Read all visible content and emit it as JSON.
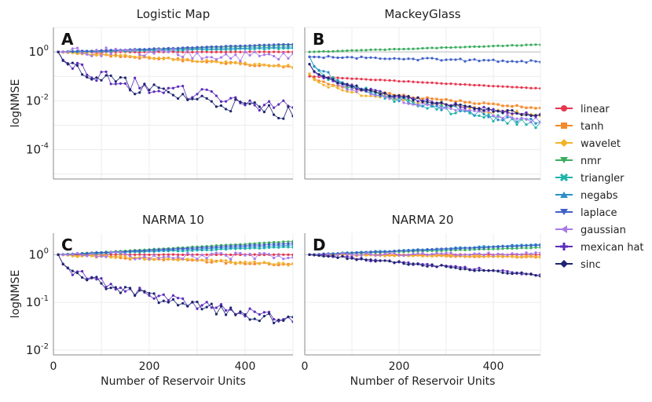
{
  "chart_data": [
    {
      "type": "line",
      "panel_letter": "A",
      "title": "Logistic Map",
      "xlabel": "",
      "ylabel": "logNMSE",
      "yscale": "log",
      "xlim": [
        0,
        500
      ],
      "ylim_log10": [
        -5.2,
        1.0
      ],
      "yticks": [
        {
          "exp": 0,
          "label": "10^0"
        },
        {
          "exp": -2,
          "label": "10^-2"
        },
        {
          "exp": -4,
          "label": "10^-4"
        }
      ],
      "xticks": [],
      "grid": true,
      "series": [
        {
          "name": "linear",
          "start": 0.0,
          "end": 0.0,
          "noise": 0.01
        },
        {
          "name": "tanh",
          "start": 0.0,
          "end": -0.62,
          "noise": 0.05
        },
        {
          "name": "wavelet",
          "start": 0.0,
          "end": -0.6,
          "noise": 0.05
        },
        {
          "name": "nmr",
          "start": 0.0,
          "end": 0.28,
          "noise": 0.01
        },
        {
          "name": "triangler",
          "start": 0.0,
          "end": 0.15,
          "noise": 0.02
        },
        {
          "name": "negabs",
          "start": 0.0,
          "end": 0.2,
          "noise": 0.01
        },
        {
          "name": "laplace",
          "start": 0.0,
          "end": 0.32,
          "noise": 0.01
        },
        {
          "name": "gaussian",
          "start": 0.0,
          "end": -0.2,
          "noise": 0.22
        },
        {
          "name": "mexican hat",
          "start": 0.0,
          "end": -2.3,
          "noise": 0.3
        },
        {
          "name": "sinc",
          "start": 0.0,
          "end": -2.5,
          "noise": 0.3
        }
      ]
    },
    {
      "type": "line",
      "panel_letter": "B",
      "title": "MackeyGlass",
      "xlabel": "",
      "ylabel": "",
      "yscale": "log",
      "xlim": [
        0,
        500
      ],
      "ylim_log10": [
        -5.2,
        1.0
      ],
      "yticks": [],
      "xticks": [],
      "grid": true,
      "series": [
        {
          "name": "linear",
          "start": -1.0,
          "end": -1.5,
          "noise": 0.01
        },
        {
          "name": "tanh",
          "start": -0.9,
          "end": -2.3,
          "noise": 0.04
        },
        {
          "name": "wavelet",
          "start": -0.9,
          "end": -2.6,
          "noise": 0.1
        },
        {
          "name": "nmr",
          "start": 0.0,
          "end": 0.3,
          "noise": 0.01
        },
        {
          "name": "triangler",
          "start": -0.2,
          "end": -3.0,
          "noise": 0.15
        },
        {
          "name": "negabs",
          "start": -0.2,
          "end": -2.9,
          "noise": 0.15
        },
        {
          "name": "laplace",
          "start": -0.2,
          "end": -0.4,
          "noise": 0.05
        },
        {
          "name": "gaussian",
          "start": -0.5,
          "end": -2.8,
          "noise": 0.12
        },
        {
          "name": "mexican hat",
          "start": -0.5,
          "end": -2.6,
          "noise": 0.08
        },
        {
          "name": "sinc",
          "start": -0.5,
          "end": -2.6,
          "noise": 0.08
        }
      ]
    },
    {
      "type": "line",
      "panel_letter": "C",
      "title": "NARMA 10",
      "xlabel": "Number of Reservoir Units",
      "ylabel": "logNMSE",
      "yscale": "log",
      "xlim": [
        0,
        500
      ],
      "ylim_log10": [
        -2.1,
        0.45
      ],
      "yticks": [
        {
          "exp": 0,
          "label": "10^0"
        },
        {
          "exp": -1,
          "label": "10^-1"
        },
        {
          "exp": -2,
          "label": "10^-2"
        }
      ],
      "xticks": [
        0,
        200,
        400
      ],
      "grid": true,
      "series": [
        {
          "name": "linear",
          "start": 0.0,
          "end": 0.0,
          "noise": 0.005
        },
        {
          "name": "tanh",
          "start": 0.0,
          "end": -0.22,
          "noise": 0.03
        },
        {
          "name": "wavelet",
          "start": 0.0,
          "end": -0.2,
          "noise": 0.03
        },
        {
          "name": "nmr",
          "start": 0.0,
          "end": 0.28,
          "noise": 0.005
        },
        {
          "name": "triangler",
          "start": 0.0,
          "end": 0.16,
          "noise": 0.01
        },
        {
          "name": "negabs",
          "start": 0.0,
          "end": 0.2,
          "noise": 0.005
        },
        {
          "name": "laplace",
          "start": 0.0,
          "end": 0.24,
          "noise": 0.005
        },
        {
          "name": "gaussian",
          "start": 0.0,
          "end": -0.05,
          "noise": 0.08
        },
        {
          "name": "mexican hat",
          "start": 0.0,
          "end": -1.35,
          "noise": 0.1
        },
        {
          "name": "sinc",
          "start": 0.0,
          "end": -1.4,
          "noise": 0.1
        }
      ]
    },
    {
      "type": "line",
      "panel_letter": "D",
      "title": "NARMA 20",
      "xlabel": "Number of Reservoir Units",
      "ylabel": "",
      "yscale": "log",
      "xlim": [
        0,
        500
      ],
      "ylim_log10": [
        -2.1,
        0.45
      ],
      "yticks": [],
      "xticks": [
        0,
        200,
        400
      ],
      "grid": true,
      "series": [
        {
          "name": "linear",
          "start": 0.0,
          "end": 0.0,
          "noise": 0.004
        },
        {
          "name": "tanh",
          "start": 0.0,
          "end": -0.05,
          "noise": 0.01
        },
        {
          "name": "wavelet",
          "start": 0.0,
          "end": -0.04,
          "noise": 0.01
        },
        {
          "name": "nmr",
          "start": 0.0,
          "end": 0.15,
          "noise": 0.004
        },
        {
          "name": "triangler",
          "start": 0.0,
          "end": 0.2,
          "noise": 0.01
        },
        {
          "name": "negabs",
          "start": 0.0,
          "end": 0.22,
          "noise": 0.01
        },
        {
          "name": "laplace",
          "start": 0.0,
          "end": 0.2,
          "noise": 0.008
        },
        {
          "name": "gaussian",
          "start": 0.0,
          "end": 0.02,
          "noise": 0.03
        },
        {
          "name": "mexican hat",
          "start": 0.0,
          "end": -0.42,
          "noise": 0.03
        },
        {
          "name": "sinc",
          "start": 0.0,
          "end": -0.44,
          "noise": 0.03
        }
      ]
    }
  ],
  "legend": {
    "placement": "right",
    "entries": [
      {
        "name": "linear",
        "color": "#e8364f",
        "marker": "circle"
      },
      {
        "name": "tanh",
        "color": "#f58a2c",
        "marker": "square"
      },
      {
        "name": "wavelet",
        "color": "#f2b32a",
        "marker": "diamond"
      },
      {
        "name": "nmr",
        "color": "#3aad5e",
        "marker": "triangle-down"
      },
      {
        "name": "triangler",
        "color": "#1bb3a9",
        "marker": "cross"
      },
      {
        "name": "negabs",
        "color": "#2d8fc9",
        "marker": "triangle-up"
      },
      {
        "name": "laplace",
        "color": "#3f60c7",
        "marker": "triangle-down"
      },
      {
        "name": "gaussian",
        "color": "#a77ae8",
        "marker": "triangle-left"
      },
      {
        "name": "mexican hat",
        "color": "#5c2dba",
        "marker": "plus"
      },
      {
        "name": "sinc",
        "color": "#1d2570",
        "marker": "diamond"
      }
    ]
  }
}
